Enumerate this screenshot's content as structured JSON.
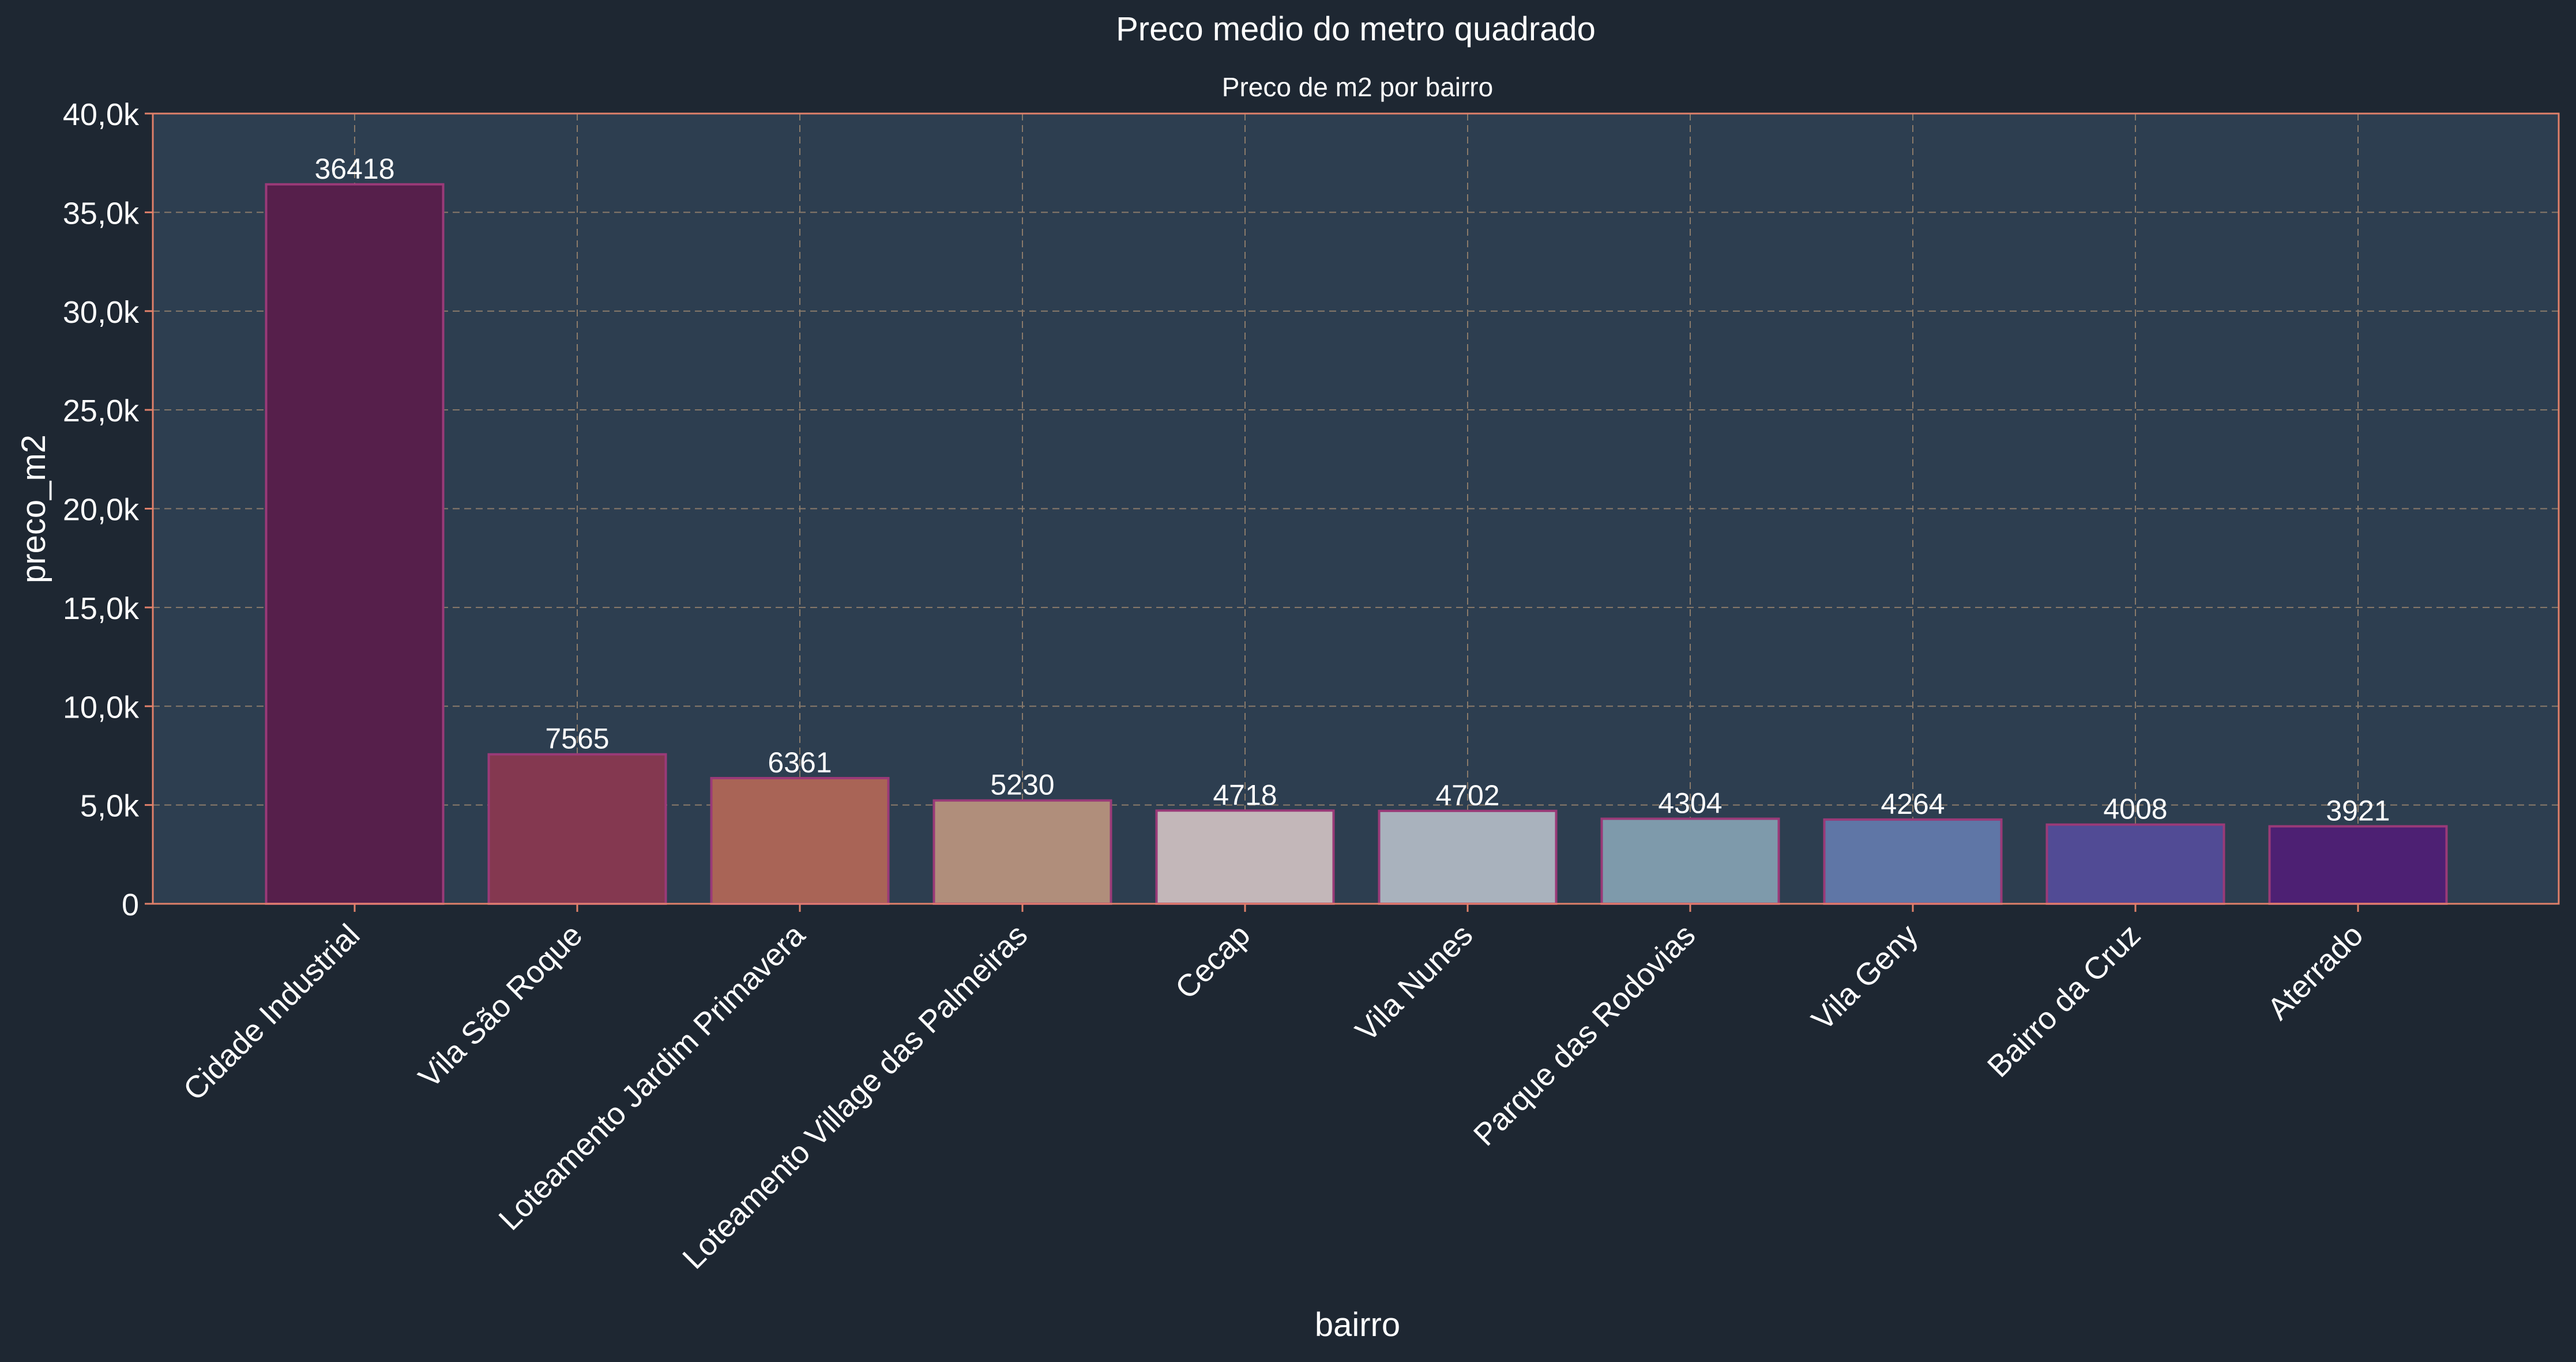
{
  "chart_data": {
    "type": "bar",
    "title": "Preco medio do metro quadrado",
    "subtitle": "Preco de m2 por bairro",
    "xlabel": "bairro",
    "ylabel": "preco_m2",
    "ylim": [
      0,
      40000
    ],
    "yticks": [
      0,
      5000,
      10000,
      15000,
      20000,
      25000,
      30000,
      35000,
      40000
    ],
    "ytick_labels": [
      "0",
      "5,0k",
      "10,0k",
      "15,0k",
      "20,0k",
      "25,0k",
      "30,0k",
      "35,0k",
      "40,0k"
    ],
    "grid": true,
    "categories": [
      "Cidade Industrial",
      "Vila São Roque",
      "Loteamento Jardim Primavera",
      "Loteamento Village das Palmeiras",
      "Cecap",
      "Vila Nunes",
      "Parque das Rodovias",
      "Vila Geny",
      "Bairro da Cruz",
      "Aterrado"
    ],
    "values": [
      36418,
      7565,
      6361,
      5230,
      4718,
      4702,
      4304,
      4264,
      4008,
      3921
    ],
    "data_labels": [
      "36418",
      "7565",
      "6361",
      "5230",
      "4718",
      "4702",
      "4304",
      "4264",
      "4008",
      "3921"
    ],
    "bar_colors": [
      "#561f4b",
      "#843850",
      "#a96456",
      "#b08e7b",
      "#c3b7b9",
      "#a9b2bd",
      "#7e9aab",
      "#5f76a6",
      "#514b95",
      "#4d2073"
    ],
    "colors": {
      "background": "#1e2732",
      "plot_background": "#2d3e50",
      "axes_border": "#e0806a",
      "grid": "#8a7a6a",
      "bar_edge": "#9a3a78",
      "text": "#ffffff"
    }
  }
}
